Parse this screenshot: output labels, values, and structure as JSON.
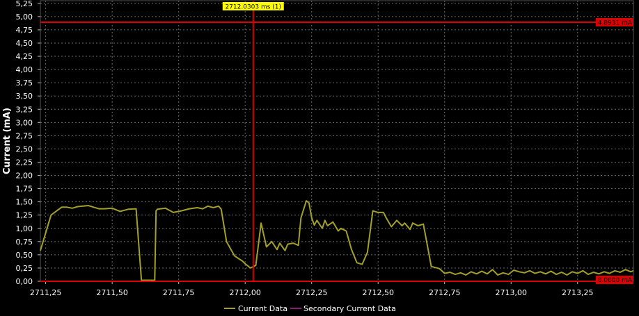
{
  "chart_data": {
    "type": "line",
    "ylabel": "Current (mA)",
    "xlabel": "",
    "title": "",
    "xlim": [
      2711.23,
      2713.46
    ],
    "ylim": [
      0.0,
      5.3
    ],
    "x_ticks": [
      2711.25,
      2711.5,
      2711.75,
      2712.0,
      2712.25,
      2712.5,
      2712.75,
      2713.0,
      2713.25
    ],
    "x_tick_labels": [
      "2711,25",
      "2711,50",
      "2711,75",
      "2712,00",
      "2712,25",
      "2712,50",
      "2712,75",
      "2713,00",
      "2713,25"
    ],
    "y_ticks": [
      0,
      0.25,
      0.5,
      0.75,
      1.0,
      1.25,
      1.5,
      1.75,
      2.0,
      2.25,
      2.5,
      2.75,
      3.0,
      3.25,
      3.5,
      3.75,
      4.0,
      4.25,
      4.5,
      4.75,
      5.0,
      5.25
    ],
    "y_tick_labels": [
      "0,00",
      "0,25",
      "0,50",
      "0,75",
      "1,00",
      "1,25",
      "1,50",
      "1,75",
      "2,00",
      "2,25",
      "2,50",
      "2,75",
      "3,00",
      "3,25",
      "3,50",
      "3,75",
      "4,00",
      "4,25",
      "4,50",
      "4,75",
      "5,00",
      "5,25"
    ],
    "grid": true,
    "legend_position": "bottom-center",
    "series": [
      {
        "name": "Current Data",
        "color": "#a3a02a",
        "x": [
          2711.23,
          2711.27,
          2711.31,
          2711.33,
          2711.35,
          2711.37,
          2711.39,
          2711.41,
          2711.43,
          2711.45,
          2711.47,
          2711.5,
          2711.53,
          2711.56,
          2711.59,
          2711.61,
          2711.62,
          2711.625,
          2711.63,
          2711.66,
          2711.665,
          2711.67,
          2711.7,
          2711.73,
          2711.76,
          2711.79,
          2711.82,
          2711.84,
          2711.86,
          2711.88,
          2711.9,
          2711.91,
          2711.93,
          2711.96,
          2711.99,
          2712.0,
          2712.02,
          2712.04,
          2712.06,
          2712.08,
          2712.1,
          2712.12,
          2712.13,
          2712.15,
          2712.16,
          2712.18,
          2712.2,
          2712.21,
          2712.23,
          2712.24,
          2712.25,
          2712.26,
          2712.27,
          2712.29,
          2712.3,
          2712.31,
          2712.33,
          2712.35,
          2712.36,
          2712.38,
          2712.4,
          2712.42,
          2712.44,
          2712.46,
          2712.48,
          2712.5,
          2712.52,
          2712.53,
          2712.55,
          2712.57,
          2712.59,
          2712.6,
          2712.62,
          2712.63,
          2712.65,
          2712.67,
          2712.7,
          2712.73,
          2712.75,
          2712.77,
          2712.79,
          2712.81,
          2712.83,
          2712.85,
          2712.87,
          2712.89,
          2712.91,
          2712.93,
          2712.95,
          2712.97,
          2712.99,
          2713.01,
          2713.03,
          2713.05,
          2713.07,
          2713.09,
          2713.11,
          2713.13,
          2713.15,
          2713.17,
          2713.19,
          2713.21,
          2713.23,
          2713.25,
          2713.27,
          2713.29,
          2713.31,
          2713.33,
          2713.35,
          2713.37,
          2713.39,
          2713.41,
          2713.43,
          2713.45,
          2713.46
        ],
        "y": [
          0.58,
          1.25,
          1.4,
          1.4,
          1.38,
          1.41,
          1.42,
          1.43,
          1.4,
          1.37,
          1.37,
          1.38,
          1.32,
          1.36,
          1.37,
          0.02,
          0.02,
          0.02,
          0.02,
          0.02,
          1.33,
          1.36,
          1.38,
          1.3,
          1.33,
          1.37,
          1.39,
          1.37,
          1.42,
          1.39,
          1.42,
          1.36,
          0.75,
          0.48,
          0.38,
          0.33,
          0.25,
          0.3,
          1.1,
          0.65,
          0.75,
          0.6,
          0.72,
          0.58,
          0.7,
          0.72,
          0.68,
          1.2,
          1.52,
          1.48,
          1.2,
          1.06,
          1.15,
          1.0,
          1.15,
          1.05,
          1.12,
          0.95,
          1.0,
          0.95,
          0.6,
          0.35,
          0.32,
          0.55,
          1.33,
          1.3,
          1.3,
          1.2,
          1.03,
          1.15,
          1.05,
          1.1,
          0.98,
          1.1,
          1.05,
          1.08,
          0.28,
          0.24,
          0.15,
          0.17,
          0.13,
          0.16,
          0.12,
          0.18,
          0.14,
          0.19,
          0.14,
          0.22,
          0.12,
          0.16,
          0.13,
          0.21,
          0.18,
          0.16,
          0.2,
          0.15,
          0.18,
          0.14,
          0.19,
          0.13,
          0.17,
          0.12,
          0.18,
          0.15,
          0.2,
          0.13,
          0.17,
          0.14,
          0.18,
          0.15,
          0.2,
          0.17,
          0.22,
          0.18,
          0.2
        ]
      },
      {
        "name": "Secondary Current Data",
        "color": "#8b1a7a",
        "x": [],
        "y": []
      }
    ],
    "annotations": {
      "cursor_x": 2712.0303,
      "cursor_x_label": "2712.0303 ms (1)",
      "cursor_y": 4.8931,
      "cursor_y_label": "4.8931 mA",
      "cursor_color": "#dd0000",
      "cursor_label_bg": "#ffff00",
      "baseline_marker_label": "0.0000 mA"
    }
  }
}
